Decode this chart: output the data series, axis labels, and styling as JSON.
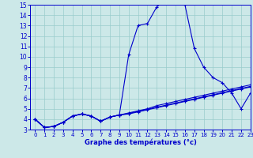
{
  "xlabel": "Graphe des températures (°c)",
  "background_color": "#cce8e8",
  "grid_color": "#99cccc",
  "line_color": "#0000cc",
  "hours": [
    0,
    1,
    2,
    3,
    4,
    5,
    6,
    7,
    8,
    9,
    10,
    11,
    12,
    13,
    14,
    15,
    16,
    17,
    18,
    19,
    20,
    21,
    22,
    23
  ],
  "temp_main": [
    4.0,
    3.2,
    3.3,
    3.7,
    4.3,
    4.5,
    4.3,
    3.8,
    4.2,
    4.4,
    10.2,
    13.0,
    13.2,
    14.8,
    15.5,
    15.4,
    15.0,
    10.8,
    9.0,
    8.0,
    7.5,
    6.5,
    5.0,
    6.5
  ],
  "temp_line2": [
    4.0,
    3.2,
    3.3,
    3.7,
    4.3,
    4.5,
    4.3,
    3.8,
    4.2,
    4.4,
    4.6,
    4.8,
    5.0,
    5.3,
    5.5,
    5.7,
    5.9,
    6.1,
    6.3,
    6.5,
    6.7,
    6.9,
    7.1,
    7.3
  ],
  "temp_line3": [
    4.0,
    3.2,
    3.3,
    3.7,
    4.3,
    4.5,
    4.3,
    3.8,
    4.2,
    4.4,
    4.55,
    4.75,
    4.95,
    5.15,
    5.35,
    5.55,
    5.75,
    5.95,
    6.15,
    6.35,
    6.55,
    6.75,
    6.95,
    7.15
  ],
  "temp_line4": [
    4.0,
    3.2,
    3.3,
    3.7,
    4.3,
    4.5,
    4.3,
    3.8,
    4.2,
    4.4,
    4.5,
    4.7,
    4.9,
    5.1,
    5.3,
    5.5,
    5.7,
    5.9,
    6.1,
    6.3,
    6.5,
    6.7,
    6.9,
    7.1
  ],
  "ylim": [
    3,
    15
  ],
  "xlim": [
    -0.5,
    23
  ],
  "yticks": [
    3,
    4,
    5,
    6,
    7,
    8,
    9,
    10,
    11,
    12,
    13,
    14,
    15
  ],
  "xticks": [
    0,
    1,
    2,
    3,
    4,
    5,
    6,
    7,
    8,
    9,
    10,
    11,
    12,
    13,
    14,
    15,
    16,
    17,
    18,
    19,
    20,
    21,
    22,
    23
  ]
}
